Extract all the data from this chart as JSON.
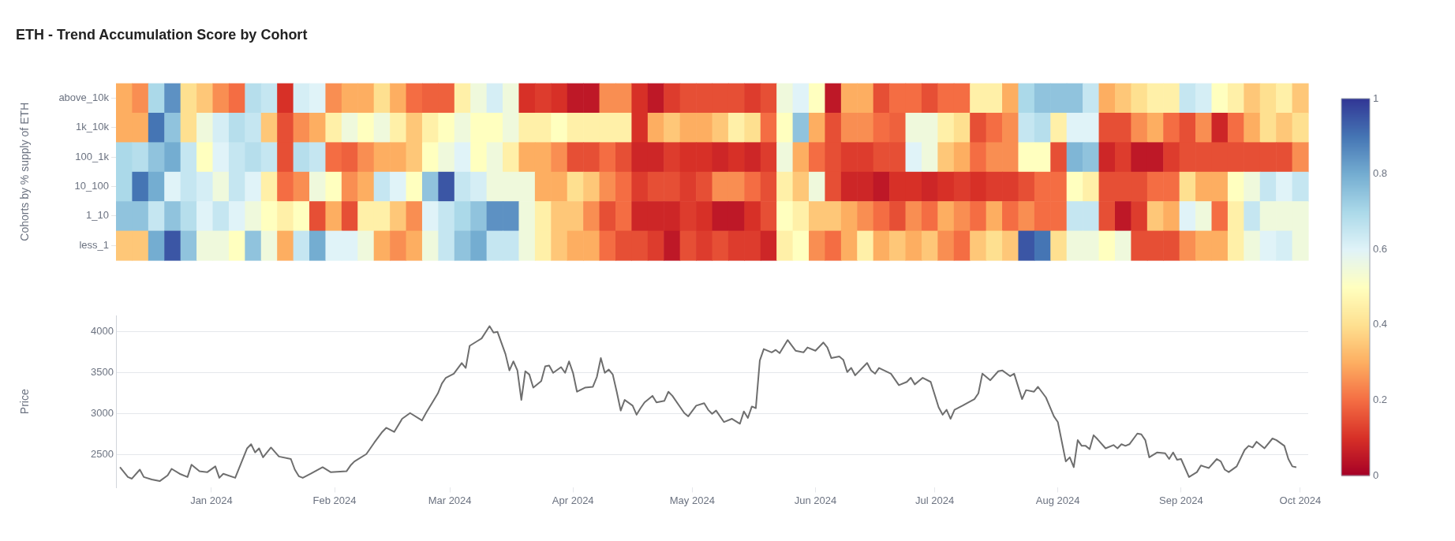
{
  "chart_data": [
    {
      "type": "heatmap",
      "title": "ETH - Trend Accumulation Score by Cohort",
      "ylabel": "Cohorts by % supply of ETH",
      "categories": [
        null,
        null,
        null,
        null,
        null,
        null,
        null,
        null,
        null,
        null,
        null,
        null,
        null,
        null,
        null,
        null,
        null,
        null,
        null,
        null,
        null,
        null,
        null,
        null,
        null,
        null,
        null,
        null,
        null,
        null,
        null,
        null,
        null,
        null,
        null,
        null,
        null,
        null,
        null,
        null,
        null,
        null,
        null,
        null,
        null,
        null,
        null,
        null,
        null,
        null,
        null,
        null,
        null,
        null,
        null,
        null,
        null,
        null,
        null,
        null,
        null,
        null,
        null,
        null,
        null,
        null,
        null,
        null,
        null,
        null,
        null,
        null,
        null,
        null
      ],
      "y_categories": [
        "above_10k",
        "1k_10k",
        "100_1k",
        "10_100",
        "1_10",
        "less_1"
      ],
      "cells": [
        [
          0.3,
          0.25,
          0.7,
          0.85,
          0.4,
          0.35,
          0.25,
          0.2,
          0.68,
          0.65,
          0.1,
          0.62,
          0.6,
          0.25,
          0.3,
          0.3,
          0.4,
          0.3,
          0.2,
          0.18,
          0.18,
          0.45,
          0.55,
          0.62,
          0.55,
          0.1,
          0.12,
          0.1,
          0.05,
          0.05,
          0.25,
          0.25,
          0.1,
          0.05,
          0.12,
          0.15,
          0.15,
          0.15,
          0.15,
          0.12,
          0.15,
          0.55,
          0.6,
          0.5,
          0.05,
          0.3,
          0.3,
          0.15,
          0.2,
          0.2,
          0.15,
          0.2,
          0.2,
          0.45,
          0.45,
          0.3,
          0.7,
          0.75,
          0.75,
          0.75,
          0.65,
          0.3,
          0.35,
          0.4,
          0.45,
          0.45,
          0.65,
          0.62,
          0.5,
          0.45,
          0.35,
          0.4,
          0.45,
          0.35
        ],
        [
          0.3,
          0.3,
          0.9,
          0.75,
          0.4,
          0.55,
          0.62,
          0.68,
          0.65,
          0.35,
          0.15,
          0.25,
          0.3,
          0.45,
          0.55,
          0.5,
          0.55,
          0.45,
          0.35,
          0.45,
          0.5,
          0.55,
          0.5,
          0.5,
          0.55,
          0.45,
          0.45,
          0.5,
          0.45,
          0.45,
          0.45,
          0.45,
          0.1,
          0.3,
          0.35,
          0.3,
          0.3,
          0.35,
          0.45,
          0.4,
          0.2,
          0.5,
          0.75,
          0.3,
          0.15,
          0.25,
          0.25,
          0.2,
          0.18,
          0.55,
          0.55,
          0.45,
          0.4,
          0.15,
          0.2,
          0.25,
          0.65,
          0.68,
          0.45,
          0.6,
          0.6,
          0.15,
          0.15,
          0.25,
          0.3,
          0.2,
          0.15,
          0.25,
          0.08,
          0.2,
          0.3,
          0.4,
          0.35,
          0.4
        ],
        [
          0.7,
          0.68,
          0.75,
          0.8,
          0.65,
          0.5,
          0.6,
          0.65,
          0.68,
          0.65,
          0.15,
          0.68,
          0.65,
          0.2,
          0.18,
          0.25,
          0.3,
          0.3,
          0.35,
          0.5,
          0.55,
          0.6,
          0.5,
          0.55,
          0.45,
          0.3,
          0.3,
          0.25,
          0.15,
          0.15,
          0.2,
          0.15,
          0.08,
          0.08,
          0.12,
          0.1,
          0.1,
          0.08,
          0.1,
          0.08,
          0.12,
          0.55,
          0.3,
          0.2,
          0.15,
          0.12,
          0.12,
          0.15,
          0.15,
          0.6,
          0.55,
          0.35,
          0.3,
          0.2,
          0.25,
          0.25,
          0.5,
          0.5,
          0.15,
          0.78,
          0.75,
          0.08,
          0.12,
          0.05,
          0.05,
          0.12,
          0.15,
          0.15,
          0.15,
          0.15,
          0.15,
          0.15,
          0.15,
          0.25
        ],
        [
          0.7,
          0.9,
          0.8,
          0.6,
          0.65,
          0.62,
          0.55,
          0.65,
          0.6,
          0.45,
          0.2,
          0.25,
          0.55,
          0.5,
          0.25,
          0.3,
          0.65,
          0.6,
          0.5,
          0.75,
          0.95,
          0.65,
          0.62,
          0.55,
          0.55,
          0.55,
          0.3,
          0.3,
          0.4,
          0.35,
          0.25,
          0.2,
          0.12,
          0.15,
          0.15,
          0.12,
          0.15,
          0.25,
          0.25,
          0.2,
          0.15,
          0.45,
          0.35,
          0.55,
          0.15,
          0.08,
          0.08,
          0.05,
          0.1,
          0.1,
          0.08,
          0.1,
          0.12,
          0.1,
          0.12,
          0.12,
          0.15,
          0.2,
          0.2,
          0.5,
          0.45,
          0.15,
          0.15,
          0.15,
          0.2,
          0.2,
          0.4,
          0.3,
          0.3,
          0.5,
          0.55,
          0.65,
          0.6,
          0.65
        ],
        [
          0.75,
          0.75,
          0.65,
          0.75,
          0.68,
          0.6,
          0.65,
          0.6,
          0.55,
          0.5,
          0.45,
          0.5,
          0.15,
          0.3,
          0.15,
          0.45,
          0.45,
          0.35,
          0.25,
          0.6,
          0.65,
          0.7,
          0.75,
          0.85,
          0.85,
          0.55,
          0.45,
          0.35,
          0.35,
          0.25,
          0.15,
          0.2,
          0.08,
          0.08,
          0.08,
          0.12,
          0.1,
          0.05,
          0.05,
          0.1,
          0.15,
          0.5,
          0.45,
          0.35,
          0.35,
          0.3,
          0.25,
          0.2,
          0.15,
          0.25,
          0.2,
          0.3,
          0.25,
          0.2,
          0.3,
          0.2,
          0.25,
          0.2,
          0.2,
          0.65,
          0.65,
          0.15,
          0.05,
          0.12,
          0.35,
          0.3,
          0.6,
          0.55,
          0.2,
          0.45,
          0.65,
          0.55,
          0.55,
          0.55
        ],
        [
          0.35,
          0.35,
          0.8,
          0.95,
          0.75,
          0.55,
          0.55,
          0.5,
          0.75,
          0.55,
          0.3,
          0.65,
          0.8,
          0.6,
          0.6,
          0.55,
          0.3,
          0.25,
          0.3,
          0.55,
          0.65,
          0.75,
          0.8,
          0.65,
          0.65,
          0.55,
          0.45,
          0.35,
          0.3,
          0.3,
          0.2,
          0.15,
          0.15,
          0.12,
          0.05,
          0.15,
          0.12,
          0.15,
          0.12,
          0.12,
          0.08,
          0.45,
          0.5,
          0.25,
          0.2,
          0.3,
          0.45,
          0.3,
          0.35,
          0.3,
          0.35,
          0.25,
          0.2,
          0.35,
          0.4,
          0.35,
          0.95,
          0.9,
          0.4,
          0.55,
          0.55,
          0.5,
          0.55,
          0.15,
          0.15,
          0.15,
          0.25,
          0.3,
          0.3,
          0.45,
          0.55,
          0.6,
          0.62,
          0.55
        ]
      ],
      "clim": [
        0,
        1
      ],
      "cticks": [
        0,
        0.2,
        0.4,
        0.6,
        0.8,
        1
      ],
      "tick_labels": "y"
    },
    {
      "type": "line",
      "ylabel": "Price",
      "color": "#6e6e6e",
      "marker": "none",
      "grid": "y",
      "x": [
        "2023-12-09",
        "2023-12-11",
        "2023-12-12",
        "2023-12-14",
        "2023-12-15",
        "2023-12-17",
        "2023-12-19",
        "2023-12-21",
        "2023-12-22",
        "2023-12-24",
        "2023-12-26",
        "2023-12-27",
        "2023-12-29",
        "2023-12-31",
        "2024-01-02",
        "2024-01-03",
        "2024-01-04",
        "2024-01-07",
        "2024-01-08",
        "2024-01-10",
        "2024-01-11",
        "2024-01-12",
        "2024-01-13",
        "2024-01-14",
        "2024-01-16",
        "2024-01-18",
        "2024-01-21",
        "2024-01-22",
        "2024-01-23",
        "2024-01-24",
        "2024-01-26",
        "2024-01-29",
        "2024-01-31",
        "2024-02-04",
        "2024-02-05",
        "2024-02-06",
        "2024-02-09",
        "2024-02-11",
        "2024-02-13",
        "2024-02-14",
        "2024-02-16",
        "2024-02-18",
        "2024-02-20",
        "2024-02-23",
        "2024-02-24",
        "2024-02-27",
        "2024-02-28",
        "2024-02-29",
        "2024-03-02",
        "2024-03-04",
        "2024-03-05",
        "2024-03-06",
        "2024-03-08",
        "2024-03-09",
        "2024-03-11",
        "2024-03-12",
        "2024-03-13",
        "2024-03-15",
        "2024-03-16",
        "2024-03-17",
        "2024-03-18",
        "2024-03-19",
        "2024-03-20",
        "2024-03-21",
        "2024-03-22",
        "2024-03-24",
        "2024-03-25",
        "2024-03-26",
        "2024-03-27",
        "2024-03-29",
        "2024-03-30",
        "2024-03-31",
        "2024-04-01",
        "2024-04-02",
        "2024-04-04",
        "2024-04-06",
        "2024-04-07",
        "2024-04-08",
        "2024-04-09",
        "2024-04-10",
        "2024-04-11",
        "2024-04-12",
        "2024-04-13",
        "2024-04-14",
        "2024-04-16",
        "2024-04-17",
        "2024-04-18",
        "2024-04-19",
        "2024-04-21",
        "2024-04-22",
        "2024-04-24",
        "2024-04-25",
        "2024-04-26",
        "2024-04-29",
        "2024-04-30",
        "2024-05-02",
        "2024-05-04",
        "2024-05-05",
        "2024-05-06",
        "2024-05-07",
        "2024-05-09",
        "2024-05-11",
        "2024-05-13",
        "2024-05-14",
        "2024-05-15",
        "2024-05-16",
        "2024-05-17",
        "2024-05-18",
        "2024-05-19",
        "2024-05-21",
        "2024-05-22",
        "2024-05-23",
        "2024-05-25",
        "2024-05-27",
        "2024-05-29",
        "2024-05-30",
        "2024-06-01",
        "2024-06-03",
        "2024-06-04",
        "2024-06-05",
        "2024-06-07",
        "2024-06-08",
        "2024-06-09",
        "2024-06-10",
        "2024-06-11",
        "2024-06-14",
        "2024-06-15",
        "2024-06-16",
        "2024-06-17",
        "2024-06-20",
        "2024-06-22",
        "2024-06-24",
        "2024-06-25",
        "2024-06-26",
        "2024-06-28",
        "2024-06-30",
        "2024-07-02",
        "2024-07-03",
        "2024-07-04",
        "2024-07-05",
        "2024-07-06",
        "2024-07-08",
        "2024-07-11",
        "2024-07-12",
        "2024-07-13",
        "2024-07-15",
        "2024-07-17",
        "2024-07-18",
        "2024-07-20",
        "2024-07-21",
        "2024-07-23",
        "2024-07-24",
        "2024-07-26",
        "2024-07-27",
        "2024-07-29",
        "2024-07-31",
        "2024-08-01",
        "2024-08-03",
        "2024-08-04",
        "2024-08-05",
        "2024-08-06",
        "2024-08-07",
        "2024-08-08",
        "2024-08-09",
        "2024-08-10",
        "2024-08-11",
        "2024-08-13",
        "2024-08-15",
        "2024-08-16",
        "2024-08-17",
        "2024-08-18",
        "2024-08-19",
        "2024-08-21",
        "2024-08-22",
        "2024-08-23",
        "2024-08-24",
        "2024-08-26",
        "2024-08-28",
        "2024-08-29",
        "2024-08-30",
        "2024-08-31",
        "2024-09-01",
        "2024-09-03",
        "2024-09-05",
        "2024-09-06",
        "2024-09-08",
        "2024-09-10",
        "2024-09-11",
        "2024-09-12",
        "2024-09-13",
        "2024-09-15",
        "2024-09-17",
        "2024-09-18",
        "2024-09-19",
        "2024-09-20",
        "2024-09-22",
        "2024-09-24",
        "2024-09-25",
        "2024-09-27",
        "2024-09-28",
        "2024-09-29",
        "2024-09-30"
      ],
      "values": [
        2350,
        2230,
        2210,
        2320,
        2230,
        2200,
        2180,
        2250,
        2330,
        2270,
        2230,
        2380,
        2300,
        2290,
        2360,
        2220,
        2270,
        2220,
        2340,
        2580,
        2630,
        2530,
        2580,
        2470,
        2590,
        2480,
        2450,
        2320,
        2240,
        2220,
        2270,
        2350,
        2290,
        2300,
        2370,
        2420,
        2510,
        2650,
        2780,
        2830,
        2780,
        2940,
        3010,
        2920,
        3010,
        3250,
        3370,
        3440,
        3490,
        3620,
        3560,
        3830,
        3890,
        3920,
        4070,
        3990,
        4000,
        3730,
        3530,
        3640,
        3530,
        3170,
        3520,
        3480,
        3320,
        3400,
        3580,
        3590,
        3500,
        3570,
        3500,
        3640,
        3500,
        3270,
        3320,
        3330,
        3450,
        3680,
        3500,
        3540,
        3480,
        3270,
        3040,
        3170,
        3100,
        2990,
        3070,
        3140,
        3220,
        3140,
        3160,
        3270,
        3220,
        3010,
        2970,
        3100,
        3130,
        3050,
        3000,
        3040,
        2900,
        2940,
        2880,
        3030,
        2950,
        3090,
        3070,
        3650,
        3790,
        3750,
        3780,
        3740,
        3900,
        3770,
        3750,
        3810,
        3770,
        3870,
        3810,
        3680,
        3700,
        3660,
        3510,
        3560,
        3470,
        3620,
        3530,
        3490,
        3560,
        3490,
        3350,
        3390,
        3440,
        3360,
        3440,
        3390,
        3080,
        2990,
        3050,
        2940,
        3050,
        3100,
        3180,
        3250,
        3490,
        3410,
        3520,
        3530,
        3460,
        3490,
        3180,
        3290,
        3270,
        3330,
        3200,
        2970,
        2900,
        2420,
        2470,
        2350,
        2680,
        2610,
        2610,
        2570,
        2740,
        2690,
        2580,
        2620,
        2580,
        2630,
        2610,
        2630,
        2760,
        2750,
        2680,
        2470,
        2530,
        2520,
        2450,
        2530,
        2440,
        2450,
        2230,
        2290,
        2370,
        2340,
        2450,
        2420,
        2320,
        2290,
        2360,
        2560,
        2610,
        2590,
        2660,
        2580,
        2700,
        2680,
        2610,
        2450,
        2360,
        2350
      ],
      "xlim": [
        "2023-12-08",
        "2024-10-03"
      ],
      "xticks": [
        {
          "value": "2024-01-01",
          "label": "Jan 2024"
        },
        {
          "value": "2024-02-01",
          "label": "Feb 2024"
        },
        {
          "value": "2024-03-01",
          "label": "Mar 2024"
        },
        {
          "value": "2024-04-01",
          "label": "Apr 2024"
        },
        {
          "value": "2024-05-01",
          "label": "May 2024"
        },
        {
          "value": "2024-06-01",
          "label": "Jun 2024"
        },
        {
          "value": "2024-07-01",
          "label": "Jul 2024"
        },
        {
          "value": "2024-08-01",
          "label": "Aug 2024"
        },
        {
          "value": "2024-09-01",
          "label": "Sep 2024"
        },
        {
          "value": "2024-10-01",
          "label": "Oct 2024"
        }
      ],
      "ylim": [
        2100,
        4200
      ],
      "yticks": [
        2500,
        3000,
        3500,
        4000
      ]
    }
  ]
}
